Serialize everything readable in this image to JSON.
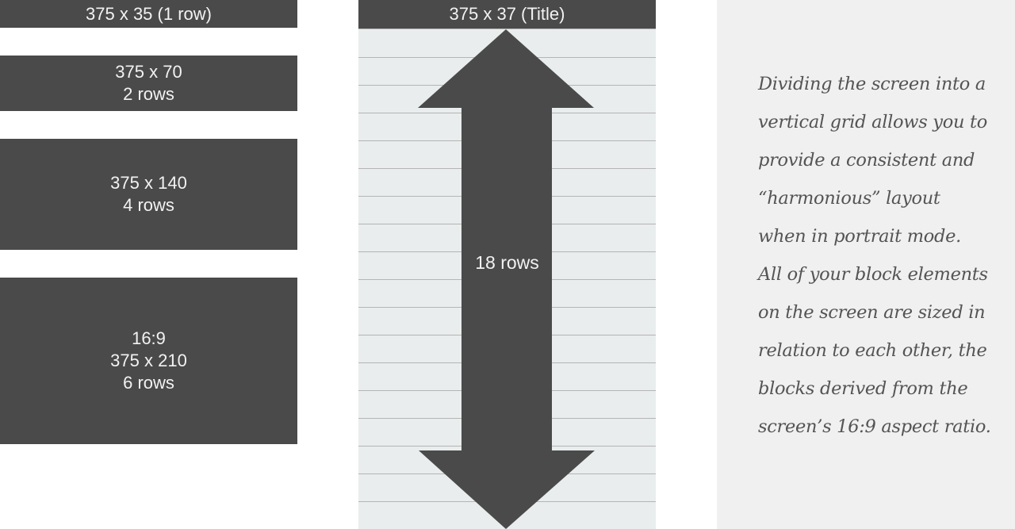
{
  "colors": {
    "block": "#4a4a4a",
    "block_text": "#f2f2f2",
    "phone_bg": "#e9eded",
    "grid_line": "#b5b5b5",
    "panel_bg": "#f0f0f0",
    "caption_text": "#545454"
  },
  "blocks": [
    {
      "lines": [
        "375 x 35 (1 row)"
      ]
    },
    {
      "lines": [
        "375 x 70",
        "2 rows"
      ]
    },
    {
      "lines": [
        "375 x 140",
        "4 rows"
      ]
    },
    {
      "lines": [
        "16:9",
        "375 x 210",
        "6 rows"
      ]
    }
  ],
  "phone": {
    "title": "375 x 37 (Title)",
    "rows_label": "18 rows",
    "row_count": 18
  },
  "caption": {
    "lines": [
      "Dividing the screen into a",
      "vertical grid allows you to",
      "provide a consistent and",
      "“harmonious” layout",
      "when in portrait mode.",
      "All of your block elements",
      "on the screen are sized in",
      "relation to each other, the",
      "blocks derived from the",
      "screen’s 16:9 aspect ratio."
    ]
  }
}
